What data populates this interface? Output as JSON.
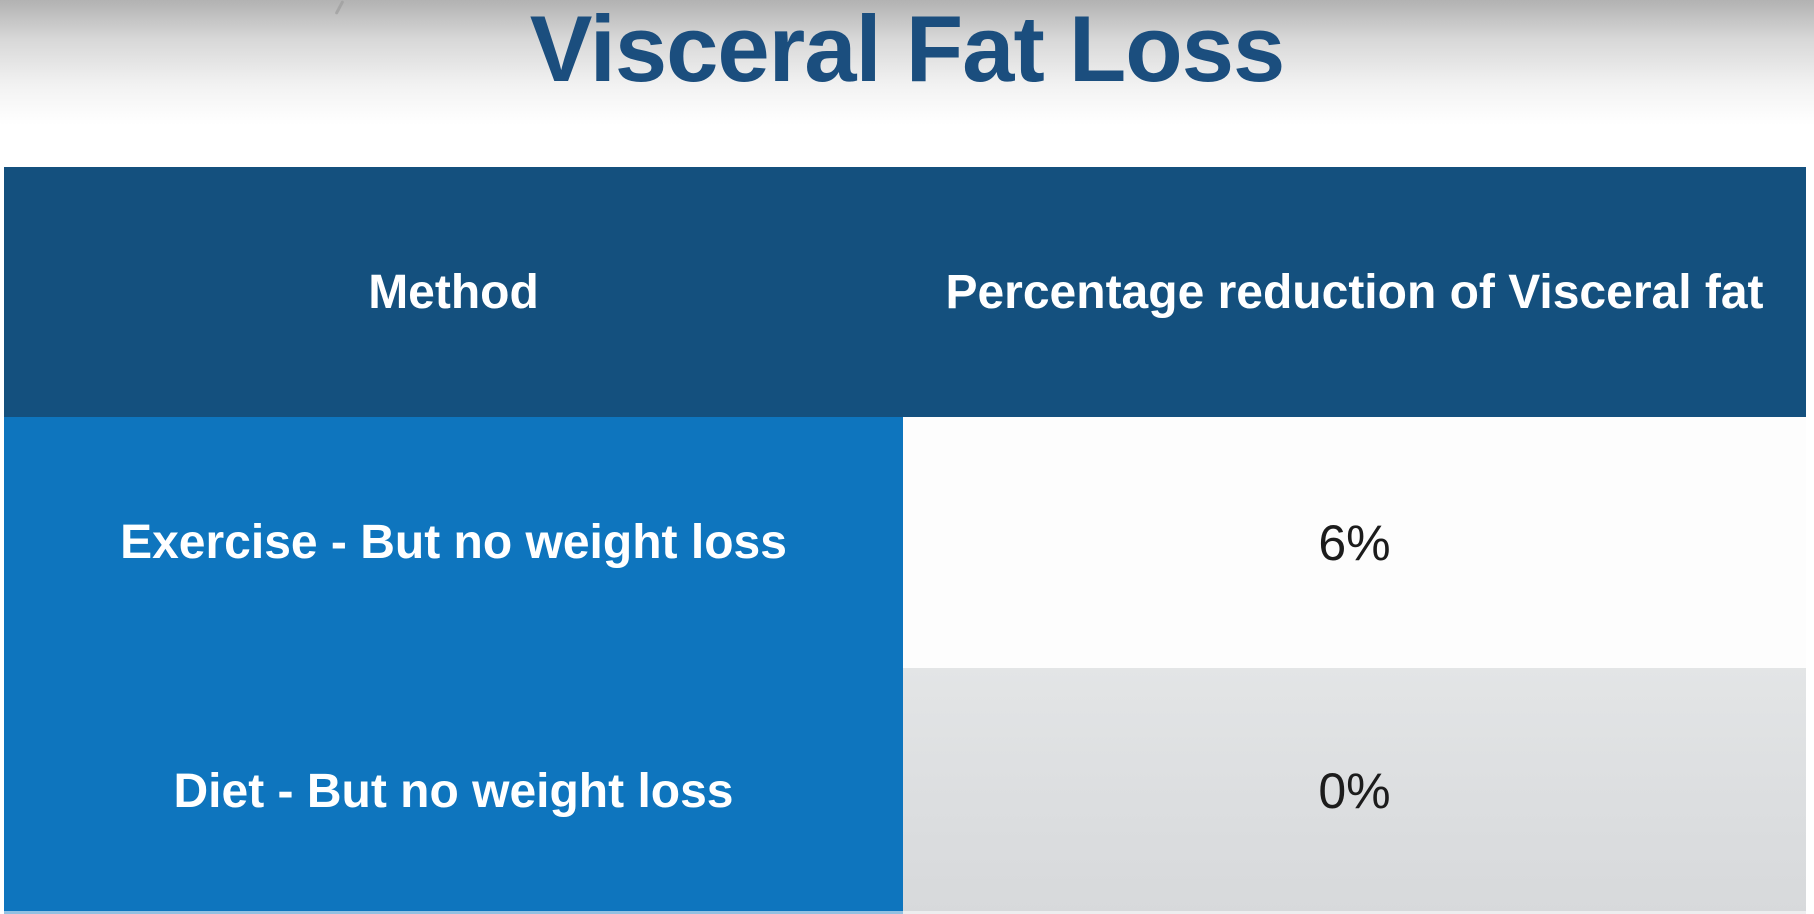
{
  "title": "Visceral Fat Loss",
  "table": {
    "columns": [
      {
        "label": "Method"
      },
      {
        "label": "Percentage reduction of Visceral fat"
      }
    ],
    "rows": [
      {
        "method": "Exercise - But no weight loss",
        "value": "6%"
      },
      {
        "method": "Diet - But no weight loss",
        "value": "0%"
      }
    ]
  },
  "chart_data": {
    "type": "table",
    "title": "Visceral Fat Loss",
    "columns": [
      "Method",
      "Percentage reduction of Visceral fat"
    ],
    "rows": [
      [
        "Exercise - But no weight loss",
        "6%"
      ],
      [
        "Diet - But no weight loss",
        "0%"
      ]
    ],
    "values_percent": [
      6,
      0
    ]
  },
  "colors": {
    "title_text": "#1b4e7e",
    "header_bg": "#14507e",
    "header_text": "#ffffff",
    "method_bg": "#0e75be",
    "method_text": "#ffffff",
    "value_text": "#1c1c1c",
    "row_alt_bg": "#dfe1e3",
    "gradient_top": "#b2b2b2"
  }
}
